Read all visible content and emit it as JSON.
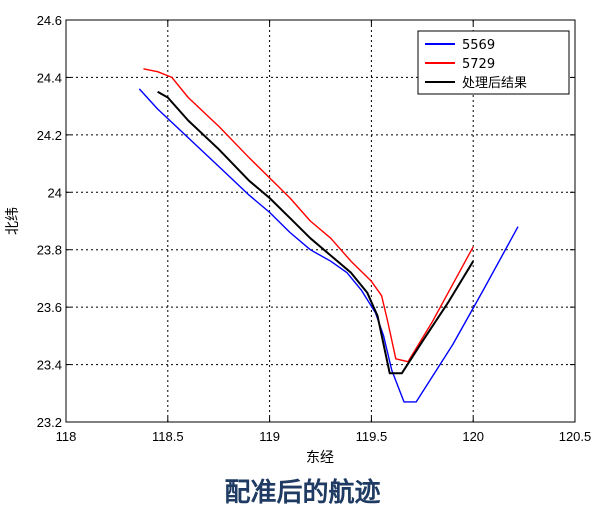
{
  "caption": "配准后的航迹",
  "chart_data": {
    "type": "line",
    "xlabel": "东经",
    "ylabel": "北纬",
    "xlim": [
      118,
      120.5
    ],
    "ylim": [
      23.2,
      24.6
    ],
    "grid": true,
    "legend_position": "top-right",
    "x_ticks": [
      118,
      118.5,
      119,
      119.5,
      120,
      120.5
    ],
    "x_tick_labels": [
      "118",
      "118.5",
      "119",
      "119.5",
      "120",
      "120.5"
    ],
    "y_ticks": [
      23.2,
      23.4,
      23.6,
      23.8,
      24,
      24.2,
      24.4,
      24.6
    ],
    "y_tick_labels": [
      "23.2",
      "23.4",
      "23.6",
      "23.8",
      "24",
      "24.2",
      "24.4",
      "24.6"
    ],
    "series": [
      {
        "name": "5569",
        "color": "#0000ff",
        "points": [
          [
            118.36,
            24.36
          ],
          [
            118.45,
            24.29
          ],
          [
            118.6,
            24.19
          ],
          [
            118.75,
            24.09
          ],
          [
            118.9,
            23.99
          ],
          [
            119.0,
            23.93
          ],
          [
            119.1,
            23.86
          ],
          [
            119.2,
            23.8
          ],
          [
            119.3,
            23.76
          ],
          [
            119.38,
            23.72
          ],
          [
            119.45,
            23.66
          ],
          [
            119.52,
            23.58
          ],
          [
            119.56,
            23.5
          ],
          [
            119.6,
            23.38
          ],
          [
            119.66,
            23.27
          ],
          [
            119.72,
            23.27
          ],
          [
            119.9,
            23.47
          ],
          [
            120.05,
            23.66
          ],
          [
            120.22,
            23.88
          ]
        ]
      },
      {
        "name": "5729",
        "color": "#ff0000",
        "points": [
          [
            118.38,
            24.43
          ],
          [
            118.45,
            24.42
          ],
          [
            118.52,
            24.4
          ],
          [
            118.6,
            24.33
          ],
          [
            118.75,
            24.23
          ],
          [
            118.9,
            24.12
          ],
          [
            119.0,
            24.05
          ],
          [
            119.1,
            23.98
          ],
          [
            119.2,
            23.9
          ],
          [
            119.3,
            23.84
          ],
          [
            119.4,
            23.76
          ],
          [
            119.5,
            23.69
          ],
          [
            119.55,
            23.64
          ],
          [
            119.58,
            23.55
          ],
          [
            119.62,
            23.42
          ],
          [
            119.68,
            23.41
          ],
          [
            119.8,
            23.55
          ],
          [
            119.9,
            23.68
          ],
          [
            120.0,
            23.81
          ]
        ]
      },
      {
        "name": "处理后结果",
        "color": "#000000",
        "points": [
          [
            118.45,
            24.35
          ],
          [
            118.5,
            24.33
          ],
          [
            118.6,
            24.25
          ],
          [
            118.75,
            24.15
          ],
          [
            118.9,
            24.04
          ],
          [
            119.0,
            23.98
          ],
          [
            119.1,
            23.91
          ],
          [
            119.2,
            23.84
          ],
          [
            119.3,
            23.78
          ],
          [
            119.4,
            23.72
          ],
          [
            119.48,
            23.65
          ],
          [
            119.53,
            23.57
          ],
          [
            119.56,
            23.47
          ],
          [
            119.59,
            23.37
          ],
          [
            119.65,
            23.37
          ],
          [
            119.75,
            23.48
          ],
          [
            119.88,
            23.62
          ],
          [
            120.0,
            23.76
          ]
        ]
      }
    ]
  }
}
